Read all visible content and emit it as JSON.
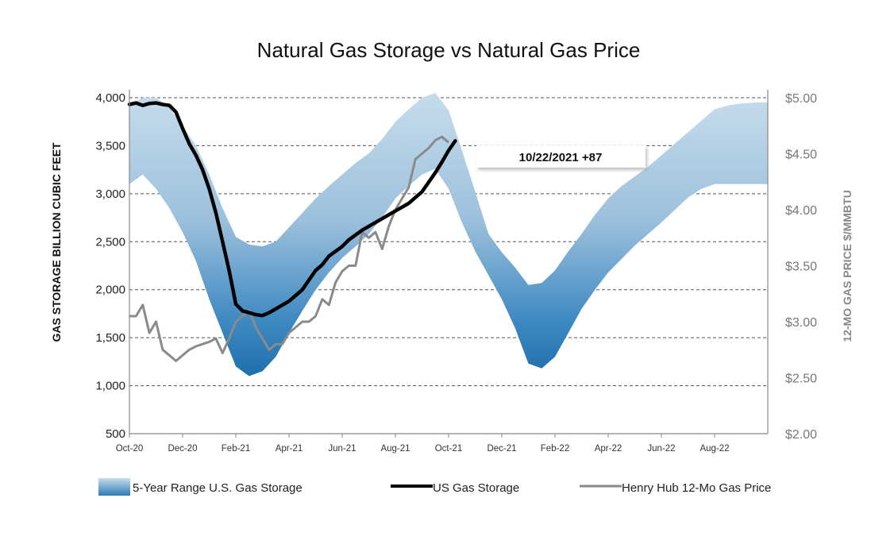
{
  "chart_data": {
    "type": "line",
    "title": "Natural Gas Storage vs Natural Gas Price",
    "ylabel_left": "GAS STORAGE BILLION CUBIC FEET",
    "ylabel_right": "12-MO GAS PRICE $/MMBTU",
    "x_ticks": [
      "Oct-20",
      "Dec-20",
      "Feb-21",
      "Apr-21",
      "Jun-21",
      "Aug-21",
      "Oct-21",
      "Dec-21",
      "Feb-22",
      "Apr-22",
      "Jun-22",
      "Aug-22"
    ],
    "y_left_ticks": [
      "4,000",
      "3,500",
      "3,000",
      "2,500",
      "2,000",
      "1,500",
      "1,000",
      "500"
    ],
    "y_right_ticks": [
      "$5.00",
      "$4.50",
      "$4.00",
      "$3.50",
      "$3.00",
      "$2.50",
      "$2.00"
    ],
    "ylim_left": [
      500,
      4000
    ],
    "ylim_right": [
      2.0,
      5.0
    ],
    "x_unit": "month index from Oct-20",
    "grid": true,
    "legend_position": "bottom",
    "annotation": "10/22/2021  +87",
    "series": [
      {
        "name": "5-Year Range U.S. Gas Storage",
        "kind": "band",
        "axis": "left",
        "color": "#2f7bb4",
        "x": [
          0,
          0.5,
          1,
          1.5,
          2,
          2.5,
          3,
          3.5,
          4,
          4.5,
          5,
          5.5,
          6,
          6.5,
          7,
          7.5,
          8,
          8.5,
          9,
          9.5,
          10,
          10.5,
          11,
          11.5,
          12,
          12.5,
          13,
          13.5,
          14,
          14.5,
          15,
          15.5,
          16,
          16.5,
          17,
          17.5,
          18,
          18.5,
          19,
          19.5,
          20,
          20.5,
          21,
          21.5,
          22,
          22.5,
          23,
          23.5,
          24
        ],
        "high": [
          3930,
          4000,
          4000,
          3900,
          3700,
          3500,
          3200,
          2850,
          2550,
          2470,
          2450,
          2500,
          2650,
          2800,
          2950,
          3080,
          3200,
          3320,
          3420,
          3570,
          3750,
          3880,
          4000,
          4050,
          3870,
          3450,
          3020,
          2580,
          2390,
          2230,
          2050,
          2070,
          2200,
          2400,
          2580,
          2780,
          2950,
          3080,
          3180,
          3280,
          3400,
          3520,
          3640,
          3760,
          3880,
          3920,
          3940,
          3950,
          3950
        ],
        "low": [
          3100,
          3200,
          3050,
          2850,
          2600,
          2300,
          1900,
          1550,
          1200,
          1100,
          1150,
          1300,
          1550,
          1780,
          2000,
          2180,
          2330,
          2450,
          2580,
          2750,
          2950,
          3080,
          3200,
          3260,
          3050,
          2700,
          2400,
          2150,
          1900,
          1600,
          1230,
          1180,
          1300,
          1550,
          1800,
          2000,
          2180,
          2320,
          2460,
          2580,
          2700,
          2830,
          2960,
          3050,
          3100,
          3100,
          3100,
          3100,
          3100
        ]
      },
      {
        "name": "US Gas Storage",
        "kind": "line",
        "axis": "left",
        "color": "#000000",
        "x": [
          0,
          0.25,
          0.5,
          0.75,
          1,
          1.25,
          1.5,
          1.75,
          2,
          2.25,
          2.5,
          2.75,
          3,
          3.25,
          3.5,
          3.75,
          4,
          4.25,
          4.5,
          4.75,
          5,
          5.25,
          5.5,
          5.75,
          6,
          6.25,
          6.5,
          6.75,
          7,
          7.25,
          7.5,
          7.75,
          8,
          8.25,
          8.5,
          8.75,
          9,
          9.25,
          9.5,
          9.75,
          10,
          10.25,
          10.5,
          10.75,
          11,
          11.25,
          11.5,
          11.75,
          12,
          12.25
        ],
        "values": [
          3930,
          3945,
          3920,
          3940,
          3945,
          3930,
          3920,
          3850,
          3680,
          3520,
          3400,
          3250,
          3050,
          2800,
          2500,
          2200,
          1850,
          1780,
          1760,
          1740,
          1730,
          1760,
          1800,
          1840,
          1880,
          1940,
          2000,
          2100,
          2200,
          2260,
          2350,
          2400,
          2450,
          2520,
          2570,
          2620,
          2660,
          2700,
          2740,
          2780,
          2820,
          2860,
          2900,
          2960,
          3020,
          3120,
          3220,
          3330,
          3450,
          3550
        ]
      },
      {
        "name": "Henry Hub 12-Mo Gas Price",
        "kind": "line",
        "axis": "right",
        "color": "#8a8a8a",
        "x": [
          0,
          0.25,
          0.5,
          0.75,
          1,
          1.25,
          1.5,
          1.75,
          2,
          2.25,
          2.5,
          2.75,
          3,
          3.25,
          3.5,
          3.75,
          4,
          4.25,
          4.5,
          4.75,
          5,
          5.25,
          5.5,
          5.75,
          6,
          6.25,
          6.5,
          6.75,
          7,
          7.25,
          7.5,
          7.75,
          8,
          8.25,
          8.5,
          8.75,
          9,
          9.25,
          9.5,
          9.75,
          10,
          10.25,
          10.5,
          10.75,
          11,
          11.25,
          11.5,
          11.75,
          12
        ],
        "values": [
          3.05,
          3.05,
          3.15,
          2.9,
          3.0,
          2.75,
          2.7,
          2.65,
          2.7,
          2.75,
          2.78,
          2.8,
          2.82,
          2.85,
          2.72,
          2.85,
          3.0,
          3.05,
          3.1,
          2.95,
          2.85,
          2.75,
          2.8,
          2.8,
          2.9,
          2.95,
          3.0,
          3.0,
          3.05,
          3.2,
          3.15,
          3.35,
          3.45,
          3.5,
          3.5,
          3.8,
          3.75,
          3.8,
          3.65,
          3.85,
          4.0,
          4.1,
          4.2,
          4.45,
          4.5,
          4.55,
          4.62,
          4.65,
          4.6
        ]
      }
    ]
  }
}
